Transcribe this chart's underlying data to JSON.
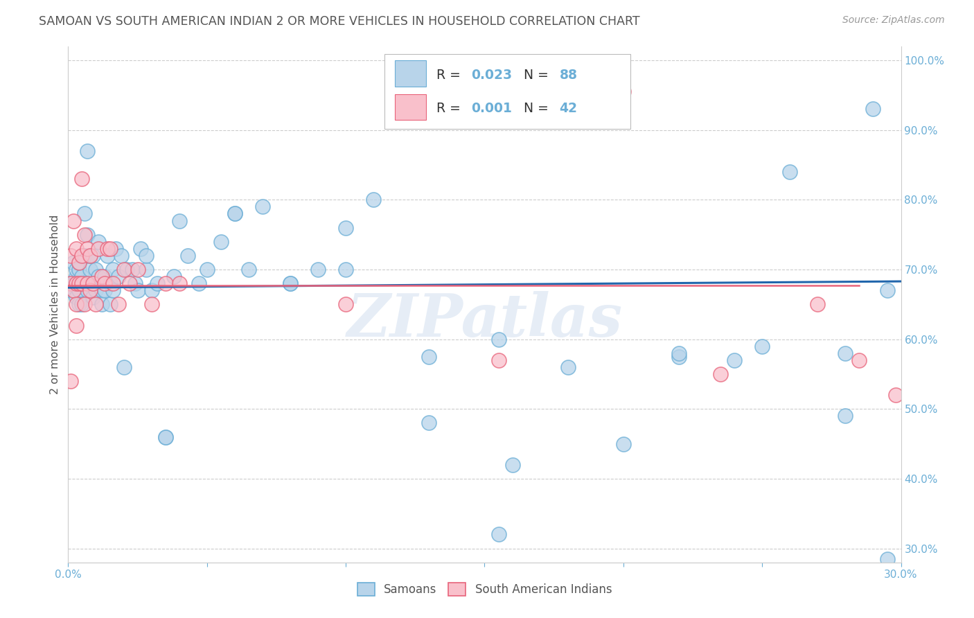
{
  "title": "SAMOAN VS SOUTH AMERICAN INDIAN 2 OR MORE VEHICLES IN HOUSEHOLD CORRELATION CHART",
  "source": "Source: ZipAtlas.com",
  "ylabel": "2 or more Vehicles in Household",
  "xlim": [
    0.0,
    0.3
  ],
  "ylim": [
    0.28,
    1.02
  ],
  "yticks": [
    0.3,
    0.4,
    0.5,
    0.6,
    0.7,
    0.8,
    0.9,
    1.0
  ],
  "yticklabels": [
    "30.0%",
    "40.0%",
    "50.0%",
    "60.0%",
    "70.0%",
    "80.0%",
    "90.0%",
    "100.0%"
  ],
  "xticks": [
    0.0,
    0.05,
    0.1,
    0.15,
    0.2,
    0.25,
    0.3
  ],
  "xticklabels": [
    "0.0%",
    "",
    "",
    "",
    "",
    "",
    "30.0%"
  ],
  "blue_r": "0.023",
  "blue_n": "88",
  "pink_r": "0.001",
  "pink_n": "42",
  "blue_face": "#b8d4ea",
  "blue_edge": "#6baed6",
  "pink_face": "#f9c0cb",
  "pink_edge": "#e8637a",
  "blue_line": "#2166ac",
  "pink_line": "#e8637a",
  "axis_color": "#6baed6",
  "grid_color": "#cccccc",
  "title_color": "#555555",
  "watermark": "ZIPatlas",
  "blue_x": [
    0.001,
    0.001,
    0.002,
    0.002,
    0.002,
    0.003,
    0.003,
    0.003,
    0.003,
    0.004,
    0.004,
    0.004,
    0.004,
    0.005,
    0.005,
    0.005,
    0.006,
    0.006,
    0.006,
    0.007,
    0.007,
    0.007,
    0.008,
    0.008,
    0.009,
    0.009,
    0.009,
    0.01,
    0.01,
    0.011,
    0.011,
    0.012,
    0.012,
    0.013,
    0.013,
    0.014,
    0.015,
    0.015,
    0.016,
    0.016,
    0.017,
    0.018,
    0.019,
    0.02,
    0.021,
    0.023,
    0.024,
    0.025,
    0.026,
    0.028,
    0.03,
    0.032,
    0.035,
    0.038,
    0.04,
    0.043,
    0.047,
    0.05,
    0.055,
    0.06,
    0.065,
    0.07,
    0.08,
    0.09,
    0.1,
    0.11,
    0.13,
    0.155,
    0.18,
    0.22,
    0.24,
    0.26,
    0.028,
    0.035,
    0.06,
    0.08,
    0.1,
    0.13,
    0.16,
    0.2,
    0.22,
    0.28,
    0.29,
    0.295,
    0.155,
    0.25,
    0.28,
    0.295
  ],
  "blue_y": [
    0.68,
    0.67,
    0.67,
    0.71,
    0.68,
    0.69,
    0.68,
    0.66,
    0.7,
    0.7,
    0.71,
    0.67,
    0.65,
    0.68,
    0.69,
    0.65,
    0.78,
    0.72,
    0.68,
    0.87,
    0.75,
    0.67,
    0.7,
    0.72,
    0.72,
    0.68,
    0.66,
    0.7,
    0.67,
    0.74,
    0.69,
    0.67,
    0.65,
    0.69,
    0.67,
    0.72,
    0.68,
    0.65,
    0.7,
    0.67,
    0.73,
    0.69,
    0.72,
    0.56,
    0.7,
    0.7,
    0.68,
    0.67,
    0.73,
    0.7,
    0.67,
    0.68,
    0.46,
    0.69,
    0.77,
    0.72,
    0.68,
    0.7,
    0.74,
    0.78,
    0.7,
    0.79,
    0.68,
    0.7,
    0.7,
    0.8,
    0.575,
    0.6,
    0.56,
    0.575,
    0.57,
    0.84,
    0.72,
    0.46,
    0.78,
    0.68,
    0.76,
    0.48,
    0.42,
    0.45,
    0.58,
    0.58,
    0.93,
    0.285,
    0.32,
    0.59,
    0.49,
    0.67
  ],
  "pink_x": [
    0.001,
    0.001,
    0.001,
    0.002,
    0.002,
    0.003,
    0.003,
    0.003,
    0.003,
    0.004,
    0.004,
    0.005,
    0.005,
    0.006,
    0.006,
    0.007,
    0.007,
    0.008,
    0.008,
    0.009,
    0.01,
    0.011,
    0.012,
    0.013,
    0.014,
    0.015,
    0.016,
    0.018,
    0.02,
    0.022,
    0.025,
    0.03,
    0.035,
    0.04,
    0.1,
    0.155,
    0.2,
    0.235,
    0.27,
    0.285,
    0.298,
    0.005
  ],
  "pink_y": [
    0.68,
    0.72,
    0.54,
    0.67,
    0.77,
    0.73,
    0.68,
    0.65,
    0.62,
    0.71,
    0.68,
    0.72,
    0.68,
    0.75,
    0.65,
    0.73,
    0.68,
    0.67,
    0.72,
    0.68,
    0.65,
    0.73,
    0.69,
    0.68,
    0.73,
    0.73,
    0.68,
    0.65,
    0.7,
    0.68,
    0.7,
    0.65,
    0.68,
    0.68,
    0.65,
    0.57,
    0.955,
    0.55,
    0.65,
    0.57,
    0.52,
    0.83
  ],
  "blue_trend_x": [
    0.0,
    0.3
  ],
  "blue_trend_y": [
    0.674,
    0.683
  ],
  "pink_trend_x": [
    0.0,
    0.285
  ],
  "pink_trend_y": [
    0.677,
    0.677
  ]
}
